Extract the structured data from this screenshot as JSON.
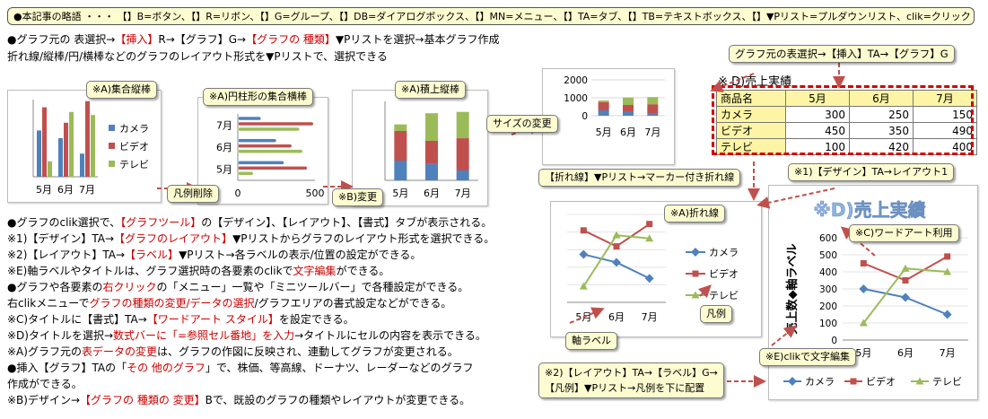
{
  "legend_line": "●本記事の略語 ・・・ 【】B=ボタン、【】R=リボン、【】G=グループ、【】DB=ダイアログボックス、【】MN=メニュー、【】TA=タブ、【】TB=テキストボックス、【】▼Pリスト=プルダウンリスト、clik=クリック",
  "intro": {
    "line1_a": "●グラフ元の 表選択→",
    "line1_b": "【挿入】",
    "line1_c": "R→【グラフ】G→",
    "line1_d": "【グラフの 種類】",
    "line1_e": "▼Pリストを選択→基本グラフ作成",
    "line2": "折れ線/縦棒/円/横棒などのグラフのレイアウト形式を▼Pリストで、選択できる"
  },
  "notes": {
    "clustered_column": "※A)集合縦棒",
    "cylinder_bar": "※A)円柱形の集合横棒",
    "stacked_column": "※A)積上縦棒",
    "legend_delete": "凡例削除",
    "change": "※B)変更",
    "size_change": "サイズの変更",
    "select_insert": "グラフ元の表選択→【挿入】TA→【グラフ】G",
    "line_marker": "【折れ線】▼Pリスト→マーカー付き折れ線",
    "layout1": "※1)【デザイン】TA→レイアウト1",
    "line_chart": "※A)折れ線",
    "word_art": "※C)ワードアート利用",
    "axis_label": "軸ラベル",
    "legend": "凡例",
    "clik_edit": "※E)clikで文字編集",
    "label_legend_1": "※2)【レイアウト】TA→【ラベル】G→",
    "label_legend_2": "【凡例】▼Pリスト→凡例を下に配置"
  },
  "body_lines": [
    [
      "●グラフのclik選択で、",
      "【グラフツール】",
      "の【デザイン】、【レイアウト】、【書式】タブが表示される。",
      ""
    ],
    [
      "※1)【デザイン】TA→",
      "【グラフのレイアウト】",
      "▼Pリストからグラフのレイアウト形式を選択できる。",
      ""
    ],
    [
      "※2)【レイアウト】TA→",
      "【ラベル】",
      "▼Pリスト→各ラベルの表示/位置の設定ができる。",
      ""
    ],
    [
      "※E)軸ラベルやタイトルは、グラフ選択時の各要素のclikで",
      "文字編集",
      "ができる。",
      ""
    ],
    [
      "●グラフや各要素の",
      "右クリック",
      "の「",
      "メニュー」一覧や「ミニツールバー」で各種設定ができる。"
    ],
    [
      "右clikメニューで",
      "グラフの種類の変更/データの選択",
      "/グラフエリアの",
      "書式設定などができる。"
    ],
    [
      "※C)タイトルに【書式】TA→",
      "【ワードアート スタイル】",
      "を設定できる。",
      ""
    ],
    [
      "※D)タイトルを選択→",
      "数式バーに「=参照セル番地」を入力",
      "→タイトルにセルの内容を表示できる。",
      ""
    ],
    [
      "※A)グラフ元の",
      "表データの変更",
      "は、グラフの作図に反映され、連動してグラフが変更される。",
      ""
    ],
    [
      "●挿入【グラフ】TAの「",
      "その 他のグラフ",
      "」で、株価、等高線、ドーナツ、レーダーなどのグラフ",
      ""
    ],
    [
      "作成ができる。",
      "",
      "",
      ""
    ],
    [
      "※B)デザイン→",
      "【グラフの 種類の 変更】",
      "Bで、既設のグラフの種類やレイアウトが変更できる。",
      ""
    ]
  ],
  "table": {
    "caption": "※ D)売上実績",
    "header": [
      "商品名",
      "5月",
      "6月",
      "7月"
    ],
    "rows": [
      [
        "カメラ",
        "300",
        "250",
        "150"
      ],
      [
        "ビデオ",
        "450",
        "350",
        "490"
      ],
      [
        "テレビ",
        "100",
        "420",
        "400"
      ]
    ]
  },
  "chart_data": [
    {
      "type": "bar",
      "categories": [
        "5月",
        "6月",
        "7月"
      ],
      "series": [
        {
          "name": "カメラ",
          "values": [
            300,
            250,
            150
          ]
        },
        {
          "name": "ビデオ",
          "values": [
            450,
            350,
            490
          ]
        },
        {
          "name": "テレビ",
          "values": [
            100,
            420,
            400
          ]
        }
      ]
    },
    {
      "type": "bar",
      "orientation": "horizontal",
      "categories": [
        "5月",
        "6月",
        "7月"
      ],
      "series": [
        {
          "values": [
            300,
            250,
            150
          ]
        },
        {
          "values": [
            450,
            350,
            490
          ]
        },
        {
          "values": [
            100,
            420,
            400
          ]
        }
      ],
      "x_ticks": [
        "0",
        "500"
      ]
    },
    {
      "type": "bar",
      "stacked": true,
      "categories": [
        "5月",
        "6月",
        "7月"
      ],
      "series": [
        {
          "values": [
            300,
            250,
            150
          ]
        },
        {
          "values": [
            450,
            350,
            490
          ]
        },
        {
          "values": [
            100,
            420,
            400
          ]
        }
      ]
    },
    {
      "type": "bar",
      "stacked": true,
      "categories": [
        "5月",
        "6月",
        "7月"
      ],
      "y_ticks": [
        "0",
        "1000",
        "2000"
      ],
      "series": [
        {
          "values": [
            300,
            250,
            150
          ]
        },
        {
          "values": [
            450,
            350,
            490
          ]
        },
        {
          "values": [
            100,
            420,
            400
          ]
        }
      ]
    },
    {
      "type": "line",
      "categories": [
        "5月",
        "6月",
        "7月"
      ],
      "series": [
        {
          "name": "カメラ",
          "values": [
            300,
            250,
            150
          ]
        },
        {
          "name": "ビデオ",
          "values": [
            450,
            350,
            490
          ]
        },
        {
          "name": "テレビ",
          "values": [
            100,
            420,
            400
          ]
        }
      ]
    },
    {
      "type": "line",
      "title": "※D)売上実績",
      "ylabel": "売上数◆軸ラベル",
      "categories": [
        "5月",
        "6月",
        "7月"
      ],
      "y_ticks": [
        "0",
        "100",
        "200",
        "300",
        "400",
        "500",
        "600"
      ],
      "ylim": [
        0,
        600
      ],
      "series": [
        {
          "name": "カメラ",
          "values": [
            300,
            250,
            150
          ]
        },
        {
          "name": "ビデオ",
          "values": [
            450,
            350,
            490
          ]
        },
        {
          "name": "テレビ",
          "values": [
            100,
            420,
            400
          ]
        }
      ]
    }
  ],
  "colors": {
    "camera": "#4f81bd",
    "video": "#c0504d",
    "tv": "#9bbb59",
    "arrow": "#c0504d",
    "note_bg": "#fdfbd0"
  }
}
